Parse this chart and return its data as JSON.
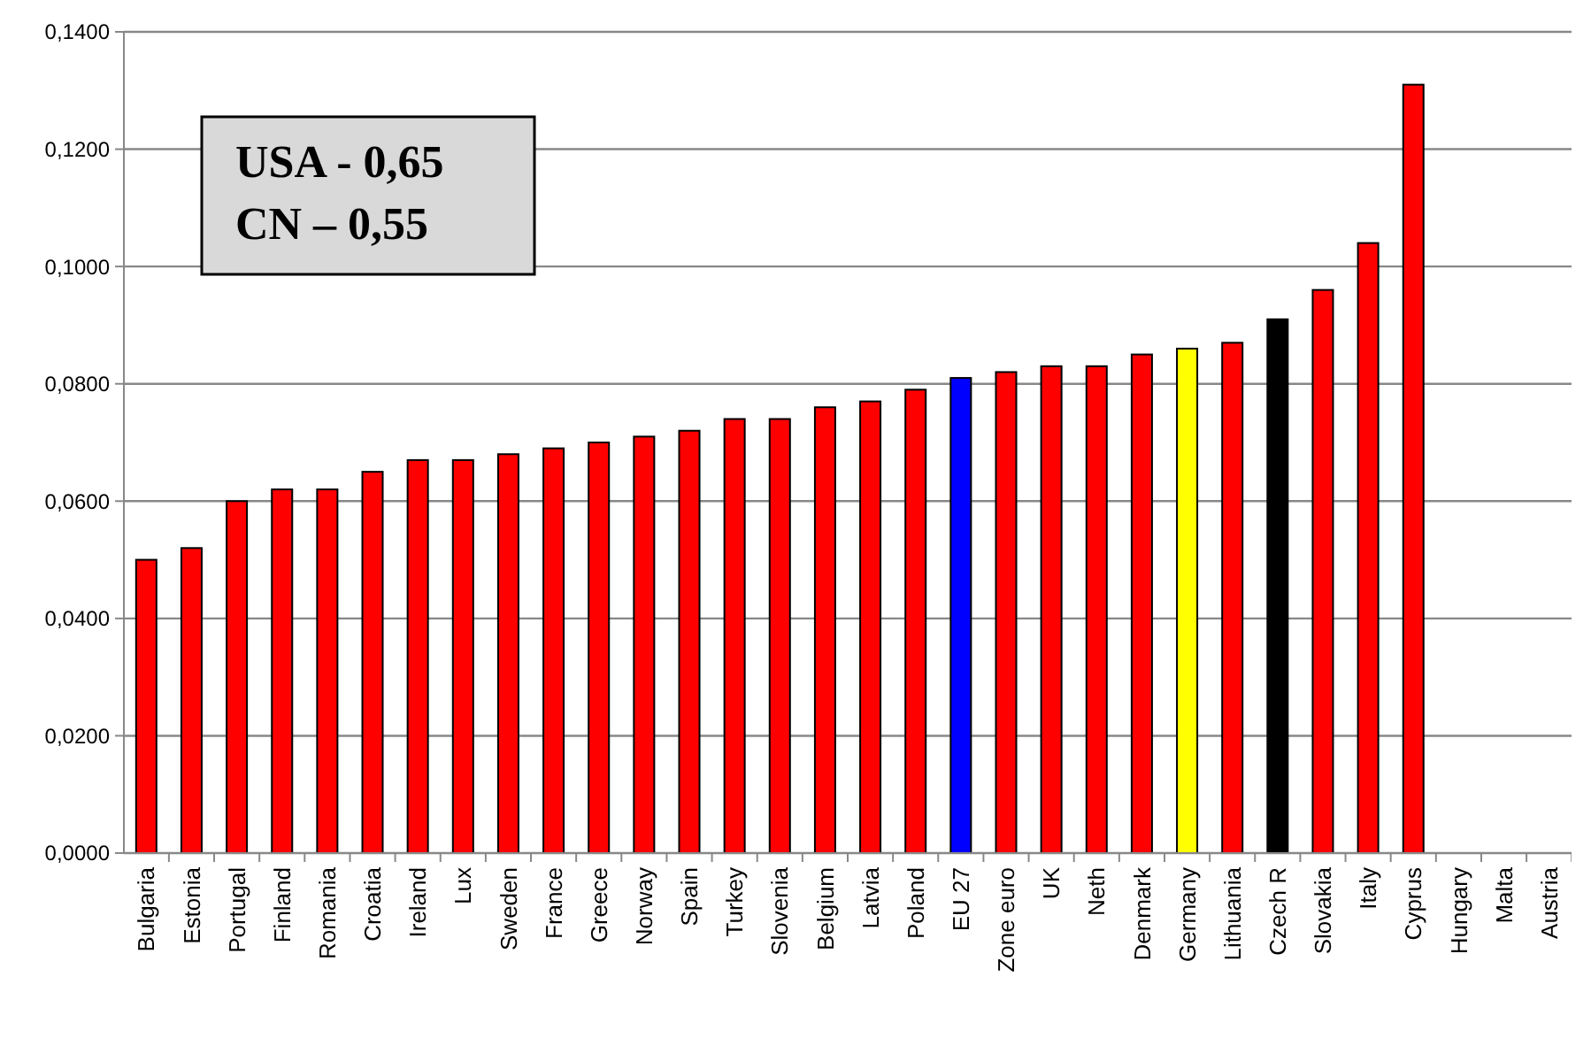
{
  "chart_data": {
    "type": "bar",
    "categories": [
      "Bulgaria",
      "Estonia",
      "Portugal",
      "Finland",
      "Romania",
      "Croatia",
      "Ireland",
      "Lux",
      "Sweden",
      "France",
      "Greece",
      "Norway",
      "Spain",
      "Turkey",
      "Slovenia",
      "Belgium",
      "Latvia",
      "Poland",
      "EU 27",
      "Zone euro",
      "UK",
      "Neth",
      "Denmark",
      "Germany",
      "Lithuania",
      "Czech R",
      "Slovakia",
      "Italy",
      "Cyprus",
      "Hungary",
      "Malta",
      "Austria"
    ],
    "values": [
      0.05,
      0.052,
      0.06,
      0.062,
      0.062,
      0.065,
      0.067,
      0.067,
      0.068,
      0.069,
      0.07,
      0.071,
      0.072,
      0.074,
      0.074,
      0.076,
      0.077,
      0.079,
      0.081,
      0.082,
      0.083,
      0.083,
      0.085,
      0.086,
      0.087,
      0.091,
      0.096,
      0.104,
      0.131,
      null,
      null,
      null
    ],
    "colors": [
      "#ff0000",
      "#ff0000",
      "#ff0000",
      "#ff0000",
      "#ff0000",
      "#ff0000",
      "#ff0000",
      "#ff0000",
      "#ff0000",
      "#ff0000",
      "#ff0000",
      "#ff0000",
      "#ff0000",
      "#ff0000",
      "#ff0000",
      "#ff0000",
      "#ff0000",
      "#ff0000",
      "#0000ff",
      "#ff0000",
      "#ff0000",
      "#ff0000",
      "#ff0000",
      "#ffff00",
      "#ff0000",
      "#000000",
      "#ff0000",
      "#ff0000",
      "#ff0000",
      null,
      null,
      null
    ],
    "ylim": [
      0,
      0.14
    ],
    "yticks": [
      {
        "value": 0,
        "label": "0,0000"
      },
      {
        "value": 0.02,
        "label": "0,0200"
      },
      {
        "value": 0.04,
        "label": "0,0400"
      },
      {
        "value": 0.06,
        "label": "0,0600"
      },
      {
        "value": 0.08,
        "label": "0,0800"
      },
      {
        "value": 0.1,
        "label": "0,1000"
      },
      {
        "value": 0.12,
        "label": "0,1200"
      },
      {
        "value": 0.14,
        "label": "0,1400"
      }
    ],
    "grid": "y",
    "annotations": [
      "USA  - 0,65",
      "CN – 0,55"
    ]
  }
}
